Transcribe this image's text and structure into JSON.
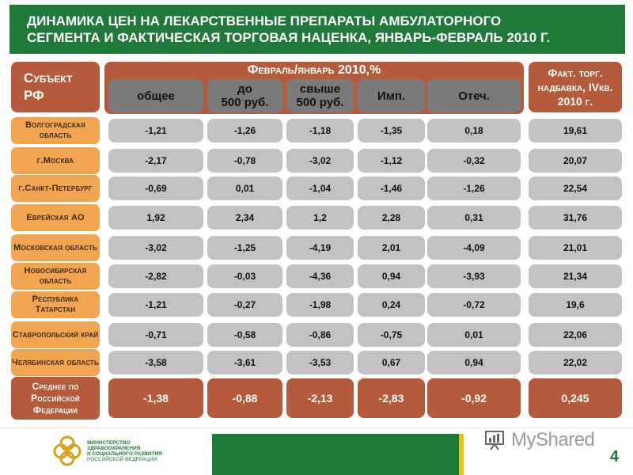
{
  "title": "ДИНАМИКА ЦЕН НА ЛЕКАРСТВЕННЫЕ ПРЕПАРАТЫ АМБУЛАТОРНОГО\nСЕГМЕНТА И ФАКТИЧЕСКАЯ ТОРГОВАЯ НАЦЕНКА, ЯНВАРЬ-ФЕВРАЛЬ 2010 Г.",
  "header": {
    "subject": "Субъект РФ",
    "feb_jan": "Февраль/январь 2010,%",
    "markup": "Факт. торг. надбавка, IVкв. 2010 г.",
    "columns": [
      "общее",
      "до\n500 руб.",
      "свыше\n500 руб.",
      "Имп.",
      "Отеч."
    ]
  },
  "rows": [
    {
      "name": "Волгоградская область",
      "values": [
        "-1,21",
        "-1,26",
        "-1,18",
        "-1,35",
        "0,18",
        "19,61"
      ]
    },
    {
      "name": "г.Москва",
      "values": [
        "-2,17",
        "-0,78",
        "-3,02",
        "-1,12",
        "-0,32",
        "20,07"
      ]
    },
    {
      "name": "г.Санкт-Петербург",
      "values": [
        "-0,69",
        "0,01",
        "-1,04",
        "-1,46",
        "-1,26",
        "22,54"
      ]
    },
    {
      "name": "Еврейская АО",
      "values": [
        "1,92",
        "2,34",
        "1,2",
        "2,28",
        "0,31",
        "31,76"
      ]
    },
    {
      "name": "Московская область",
      "values": [
        "-3,02",
        "-1,25",
        "-4,19",
        "2,01",
        "-4,09",
        "21,01"
      ]
    },
    {
      "name": "Новосибирская область",
      "values": [
        "-2,82",
        "-0,03",
        "-4,36",
        "0,94",
        "-3,93",
        "21,34"
      ]
    },
    {
      "name": "Республика Татарстан",
      "values": [
        "-1,21",
        "-0,27",
        "-1,98",
        "0,24",
        "-0,72",
        "19,6"
      ]
    },
    {
      "name": "Ставропольский край",
      "values": [
        "-0,71",
        "-0,58",
        "-0,86",
        "-0,75",
        "0,01",
        "22,06"
      ]
    },
    {
      "name": "Челябинская область",
      "values": [
        "-3,58",
        "-3,61",
        "-3,53",
        "0,67",
        "0,94",
        "22,02"
      ]
    }
  ],
  "average": {
    "name": "Среднее по Российской Федерации",
    "values": [
      "-1,38",
      "-0,88",
      "-2,13",
      "-2,83",
      "-0,92",
      "0,245"
    ]
  },
  "footer": {
    "ministry_lines": [
      "МИНИСТЕРСТВО",
      "ЗДРАВООХРАНЕНИЯ",
      "И СОЦИАЛЬНОГО РАЗВИТИЯ",
      "РОССИЙСКОЙ ФЕДЕРАЦИИ"
    ],
    "watermark": "MyShared",
    "page_number": "4"
  },
  "colors": {
    "green": "#1f7a3a",
    "brown": "#b55a3a",
    "tan": "#f2a550",
    "gray_cell": "#c2c2c2",
    "gray_header": "#7a7a7a",
    "yellow": "#e8c21a"
  },
  "icons": [
    "ministry-logo",
    "projector-icon"
  ]
}
